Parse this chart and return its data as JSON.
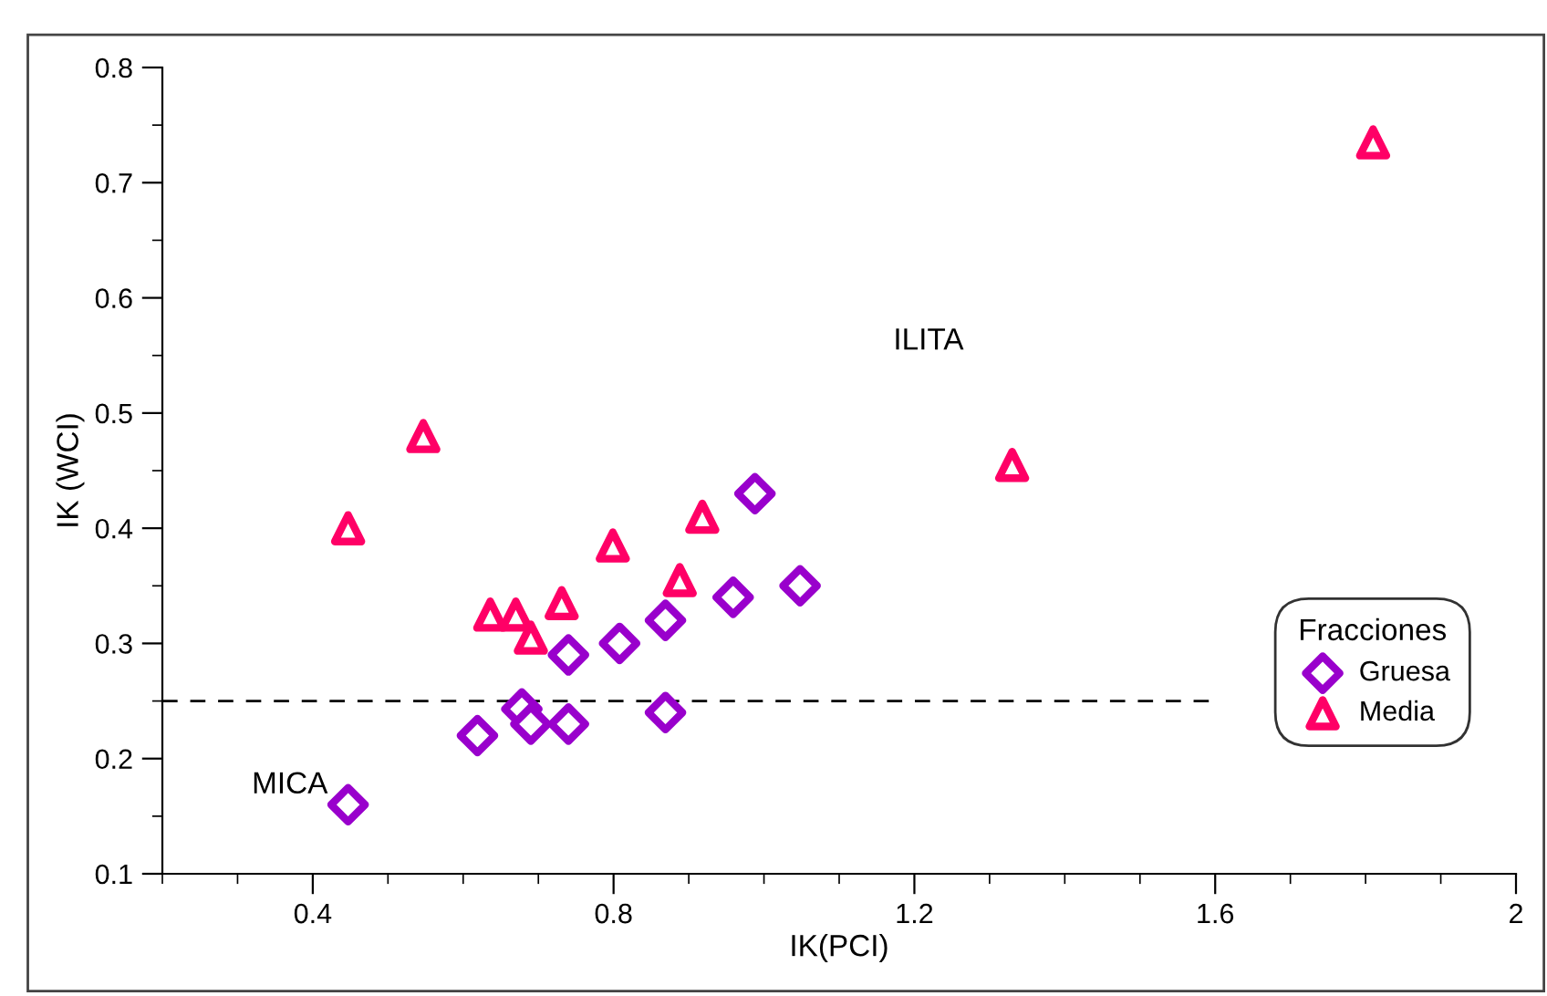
{
  "chart_data": {
    "type": "scatter",
    "xlabel": "IK(PCI)",
    "ylabel": "IK (WCI)",
    "legend_title": "Fracciones",
    "legend": "right",
    "grid": false,
    "xlim": [
      0.2,
      2.0
    ],
    "ylim": [
      0.1,
      0.8
    ],
    "xticks": [
      0.4,
      0.8,
      1.2,
      1.6,
      {
        "value": 2.0,
        "label": "2"
      }
    ],
    "yticks": [
      0.1,
      0.2,
      0.3,
      0.4,
      0.5,
      0.6,
      0.7,
      0.8
    ],
    "ref_lines": [
      {
        "axis": "y",
        "value": 0.25,
        "label": null,
        "color": "#000000",
        "line_style": "dashed"
      }
    ],
    "annotations": [
      {
        "text": "MICA",
        "x": 0.447,
        "y": 0.16
      },
      "ILITA"
    ],
    "series": [
      {
        "name": "Gruesa",
        "color": "#9900cc",
        "marker": "diamond",
        "x": [
          0.447,
          0.619,
          0.678,
          0.69,
          0.74,
          0.74,
          0.808,
          0.869,
          0.869,
          0.959,
          0.988,
          1.048
        ],
        "values": [
          0.16,
          0.22,
          0.243,
          0.23,
          0.23,
          0.29,
          0.3,
          0.32,
          0.24,
          0.34,
          0.43,
          0.35
        ]
      },
      {
        "name": "Media",
        "color": "#ff0066",
        "marker": "triangle",
        "x": [
          0.447,
          0.547,
          0.636,
          0.67,
          0.69,
          0.731,
          0.799,
          0.918,
          0.888,
          1.33,
          1.81
        ],
        "values": [
          0.4,
          0.48,
          0.325,
          0.325,
          0.305,
          0.335,
          0.385,
          0.41,
          0.355,
          0.455,
          0.735
        ]
      }
    ]
  }
}
